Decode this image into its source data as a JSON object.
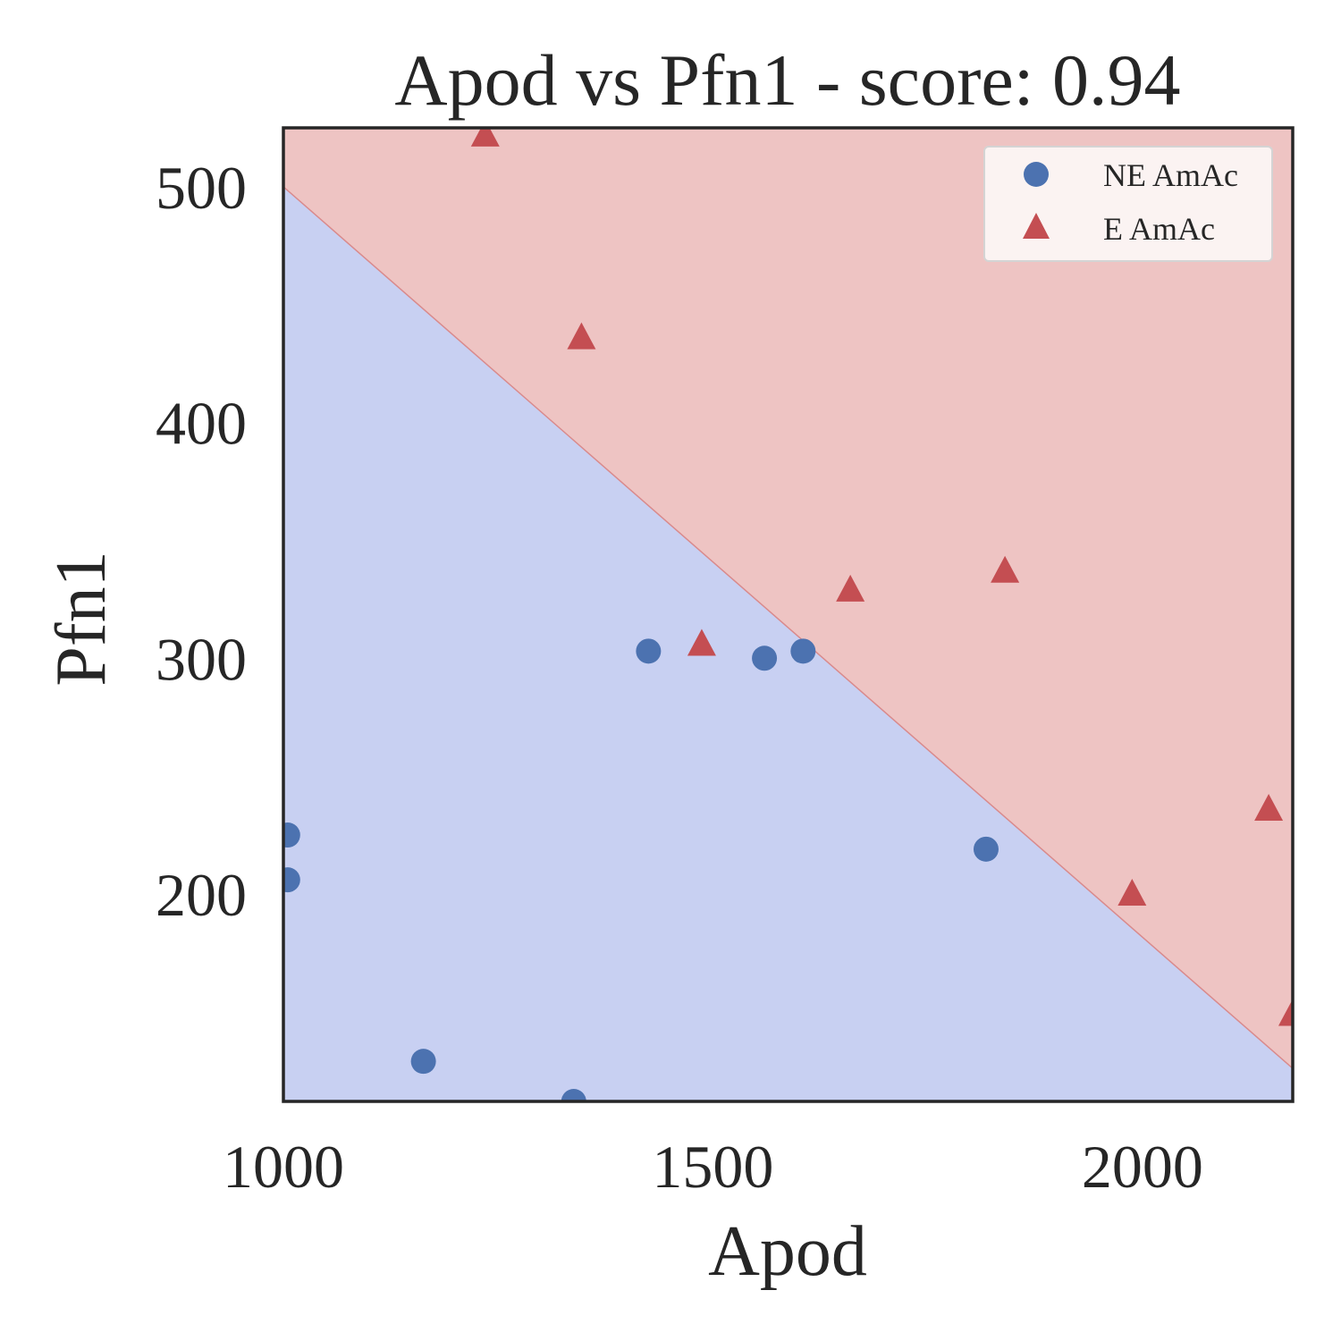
{
  "chart_data": {
    "type": "scatter",
    "title": "Apod vs Pfn1 - score: 0.94",
    "xlabel": "Apod",
    "ylabel": "Pfn1",
    "xlim": [
      1000,
      2175
    ],
    "ylim": [
      112,
      525
    ],
    "xticks": [
      1000,
      1500,
      2000
    ],
    "yticks": [
      200,
      300,
      400,
      500
    ],
    "grid": false,
    "legend_position": "upper right",
    "decision_boundary": {
      "description": "linear classifier boundary",
      "points": [
        [
          1000,
          500
        ],
        [
          2175,
          126
        ]
      ],
      "region_below": "NE AmAc",
      "region_above": "E AmAc",
      "color_below": "#c8d0f2",
      "color_above": "#eec4c3",
      "line_color": "#d98a8c"
    },
    "series": [
      {
        "name": "NE AmAc",
        "marker": "circle",
        "color": "#4c72b0",
        "points": [
          [
            1005,
            225
          ],
          [
            1005,
            206
          ],
          [
            1163,
            129
          ],
          [
            1338,
            112
          ],
          [
            1425,
            303
          ],
          [
            1560,
            300
          ],
          [
            1605,
            303
          ],
          [
            1818,
            219
          ]
        ]
      },
      {
        "name": "E AmAc",
        "marker": "triangle",
        "color": "#c44e52",
        "points": [
          [
            1235,
            522
          ],
          [
            1347,
            436
          ],
          [
            1487,
            306
          ],
          [
            1660,
            329
          ],
          [
            1840,
            337
          ],
          [
            1988,
            200
          ],
          [
            2147,
            236
          ],
          [
            2175,
            149
          ]
        ]
      }
    ]
  }
}
